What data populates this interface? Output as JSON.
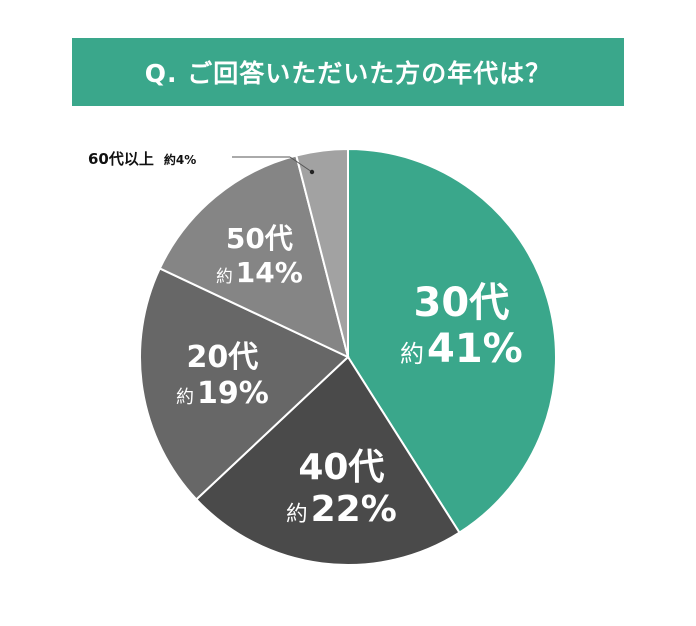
{
  "title": "Q. ご回答いただいた方の年代は？",
  "colors": {
    "title_bg": "#3aa78b",
    "slice_30s": "#3aa78b",
    "slice_40s": "#4a4a4a",
    "slice_20s": "#676767",
    "slice_50s": "#858585",
    "slice_60s_plus": "#a2a2a2",
    "separator": "#ffffff"
  },
  "labels": [
    {
      "age": "30代",
      "prefix": "約",
      "percent": "41%"
    },
    {
      "age": "40代",
      "prefix": "約",
      "percent": "22%"
    },
    {
      "age": "20代",
      "prefix": "約",
      "percent": "19%"
    },
    {
      "age": "50代",
      "prefix": "約",
      "percent": "14%"
    },
    {
      "age": "60代以上",
      "prefix": "約",
      "percent": "4%"
    }
  ],
  "chart_data": {
    "type": "pie",
    "title": "Q. ご回答いただいた方の年代は？",
    "categories": [
      "30代",
      "40代",
      "20代",
      "50代",
      "60代以上"
    ],
    "values": [
      41,
      22,
      19,
      14,
      4
    ],
    "unit": "%",
    "value_prefix": "約",
    "start_angle": "12 o'clock",
    "direction": "clockwise",
    "legend": "none (labels inside slices; 60代以上 labeled outside with leader line)"
  }
}
